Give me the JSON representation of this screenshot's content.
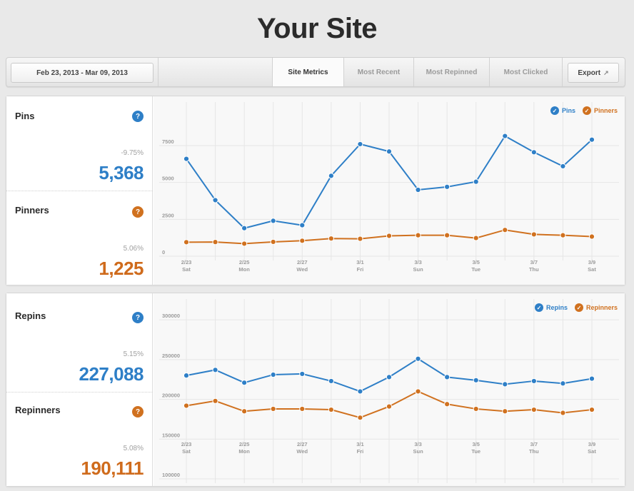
{
  "page": {
    "title": "Your Site"
  },
  "toolbar": {
    "date_range": "Feb 23, 2013 - Mar 09, 2013",
    "tabs": [
      {
        "label": "Site Metrics",
        "active": true
      },
      {
        "label": "Most Recent",
        "active": false
      },
      {
        "label": "Most Repinned",
        "active": false
      },
      {
        "label": "Most Clicked",
        "active": false
      }
    ],
    "export_label": "Export",
    "export_icon": "external-link-icon"
  },
  "colors": {
    "blue": "#2e7fc7",
    "orange": "#d0711f",
    "background": "#e9e9e9"
  },
  "panel1": {
    "stats": [
      {
        "label": "Pins",
        "help_icon": "question-icon",
        "change": "-9.75%",
        "value": "5,368",
        "color": "blue"
      },
      {
        "label": "Pinners",
        "help_icon": "question-icon",
        "change": "5.06%",
        "value": "1,225",
        "color": "orange"
      }
    ]
  },
  "panel2": {
    "stats": [
      {
        "label": "Repins",
        "help_icon": "question-icon",
        "change": "5.15%",
        "value": "227,088",
        "color": "blue"
      },
      {
        "label": "Repinners",
        "help_icon": "question-icon",
        "change": "5.08%",
        "value": "190,111",
        "color": "orange"
      }
    ]
  },
  "chart_data": [
    {
      "type": "line",
      "title": "",
      "x_ticks": [
        {
          "date": "2/23",
          "day": "Sat"
        },
        {
          "date": "2/25",
          "day": "Mon"
        },
        {
          "date": "2/27",
          "day": "Wed"
        },
        {
          "date": "3/1",
          "day": "Fri"
        },
        {
          "date": "3/3",
          "day": "Sun"
        },
        {
          "date": "3/5",
          "day": "Tue"
        },
        {
          "date": "3/7",
          "day": "Thu"
        },
        {
          "date": "3/9",
          "day": "Sat"
        }
      ],
      "x": [
        "2/23",
        "2/24",
        "2/25",
        "2/26",
        "2/27",
        "2/28",
        "3/1",
        "3/2",
        "3/3",
        "3/4",
        "3/5",
        "3/6",
        "3/7",
        "3/8",
        "3/9"
      ],
      "y_ticks": [
        0,
        2500,
        5000,
        7500
      ],
      "ylim": [
        0,
        9000
      ],
      "grid": true,
      "legend_position": "top-right",
      "series": [
        {
          "name": "Pins",
          "color": "#2e7fc7",
          "values": [
            6600,
            3800,
            1900,
            2400,
            2100,
            5450,
            7600,
            7100,
            4500,
            4700,
            5050,
            8150,
            7050,
            6100,
            7900
          ]
        },
        {
          "name": "Pinners",
          "color": "#d0711f",
          "values": [
            950,
            960,
            850,
            970,
            1050,
            1200,
            1180,
            1380,
            1420,
            1420,
            1230,
            1780,
            1480,
            1420,
            1330
          ]
        }
      ]
    },
    {
      "type": "line",
      "title": "",
      "x_ticks": [
        {
          "date": "2/23",
          "day": "Sat"
        },
        {
          "date": "2/25",
          "day": "Mon"
        },
        {
          "date": "2/27",
          "day": "Wed"
        },
        {
          "date": "3/1",
          "day": "Fri"
        },
        {
          "date": "3/3",
          "day": "Sun"
        },
        {
          "date": "3/5",
          "day": "Tue"
        },
        {
          "date": "3/7",
          "day": "Thu"
        },
        {
          "date": "3/9",
          "day": "Sat"
        }
      ],
      "x": [
        "2/23",
        "2/24",
        "2/25",
        "2/26",
        "2/27",
        "2/28",
        "3/1",
        "3/2",
        "3/3",
        "3/4",
        "3/5",
        "3/6",
        "3/7",
        "3/8",
        "3/9"
      ],
      "y_ticks": [
        100000,
        150000,
        200000,
        250000,
        300000
      ],
      "ylim": [
        100000,
        310000
      ],
      "grid": true,
      "legend_position": "top-right",
      "series": [
        {
          "name": "Repins",
          "color": "#2e7fc7",
          "values": [
            230000,
            237000,
            221000,
            231000,
            232000,
            223000,
            210000,
            228000,
            251000,
            228000,
            224000,
            219000,
            223000,
            220000,
            226000
          ]
        },
        {
          "name": "Repinners",
          "color": "#d0711f",
          "values": [
            192000,
            198000,
            185000,
            188000,
            188000,
            187000,
            177000,
            191000,
            210000,
            194000,
            188000,
            185000,
            187000,
            183000,
            187000
          ]
        }
      ]
    }
  ]
}
